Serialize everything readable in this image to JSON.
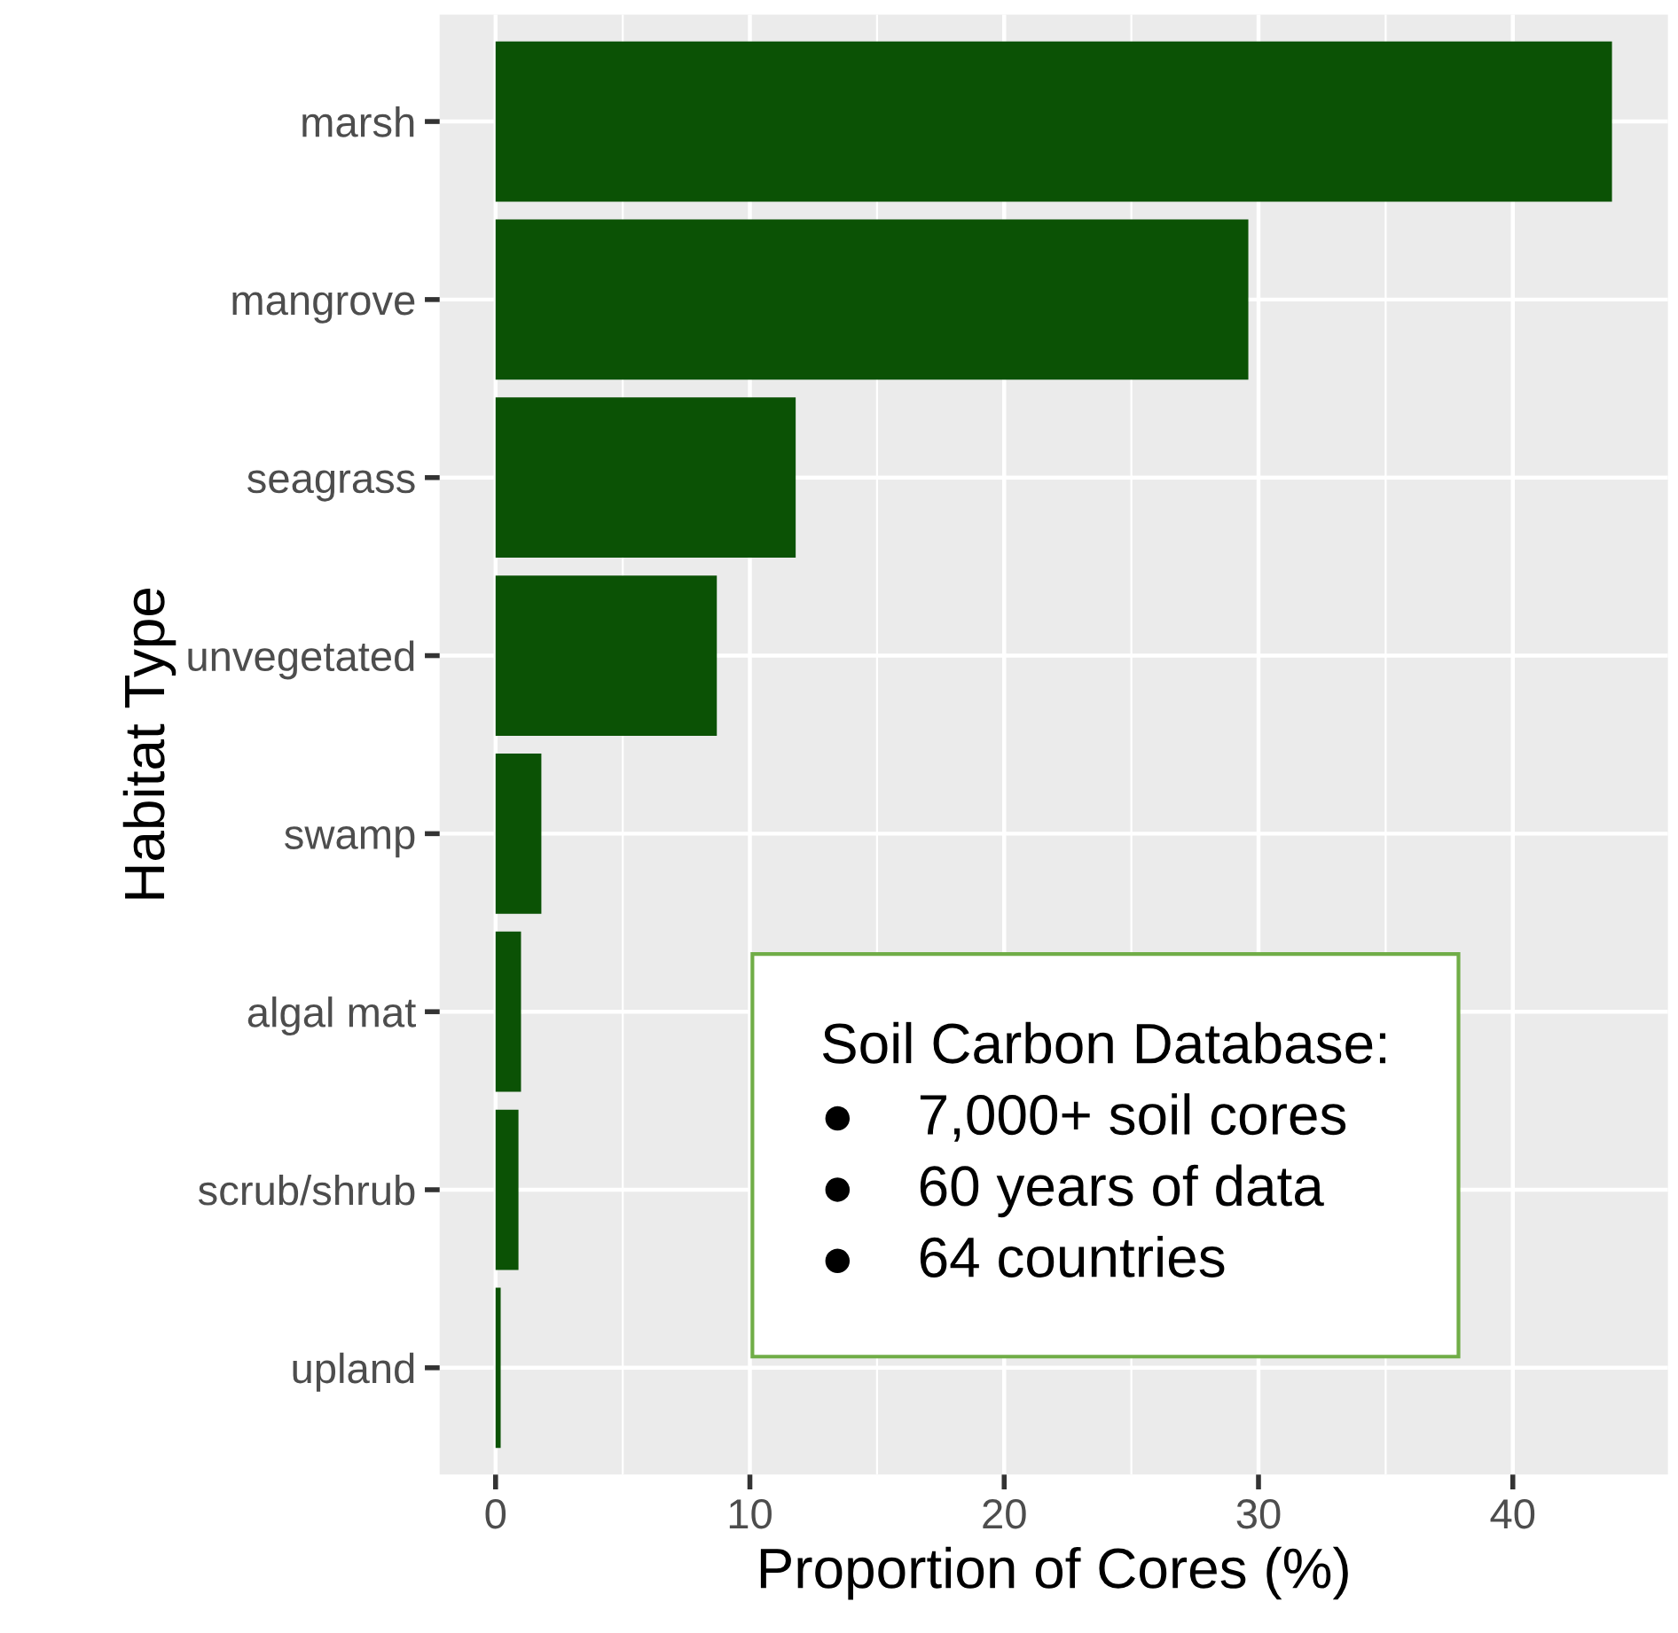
{
  "chart_data": {
    "type": "bar",
    "orientation": "horizontal",
    "xlabel": "Proportion of Cores (%)",
    "ylabel": "Habitat Type",
    "categories": [
      "marsh",
      "mangrove",
      "seagrass",
      "unvegetated",
      "swamp",
      "algal mat",
      "scrub/shrub",
      "upland"
    ],
    "values": [
      43.9,
      29.6,
      11.8,
      8.7,
      1.8,
      1.0,
      0.9,
      0.2
    ],
    "color": "#0b5205",
    "xlim": [
      -2.2,
      46.1
    ],
    "xticks": [
      0,
      10,
      20,
      30,
      40
    ],
    "grid": true,
    "annotations": [
      "Soil Carbon Database:\n●    7,000+ soil cores\n●    60 years of data\n●    64 countries"
    ]
  }
}
